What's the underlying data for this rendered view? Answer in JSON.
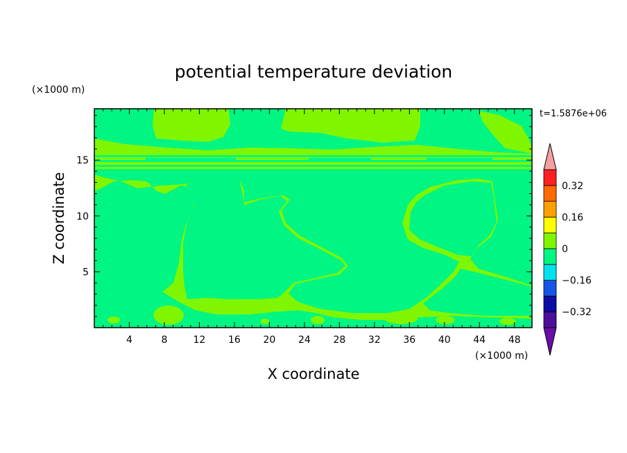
{
  "chart_data": {
    "type": "heatmap",
    "title": "potential temperature deviation",
    "xlabel": "X coordinate",
    "ylabel": "Z coordinate",
    "x_unit": "(×1000 m)",
    "z_unit": "(×1000 m)",
    "time_label": "t=1.5876e+06",
    "xlim": [
      0,
      50
    ],
    "ylim": [
      0,
      19.6
    ],
    "x_ticks": [
      4,
      8,
      12,
      16,
      20,
      24,
      28,
      32,
      36,
      40,
      44,
      48
    ],
    "y_ticks": [
      5,
      10,
      15
    ],
    "colorbar": {
      "tick_labels": [
        "0.32",
        "0.16",
        "0",
        "-0.16",
        "-0.32"
      ],
      "levels": [
        -0.4,
        -0.32,
        -0.24,
        -0.16,
        -0.08,
        0,
        0.08,
        0.16,
        0.24,
        0.32,
        0.4
      ],
      "colors": [
        "#4b0f9a",
        "#0c0ca6",
        "#1456e6",
        "#00e3ef",
        "#00f583",
        "#7ff500",
        "#ffff00",
        "#ffa000",
        "#ff6a00",
        "#ff2020"
      ],
      "under_color": "#6a0ca8",
      "over_color": "#f4a0a0"
    },
    "field_colors": {
      "negative_small": "#00f583",
      "positive_small": "#7ff500"
    }
  }
}
